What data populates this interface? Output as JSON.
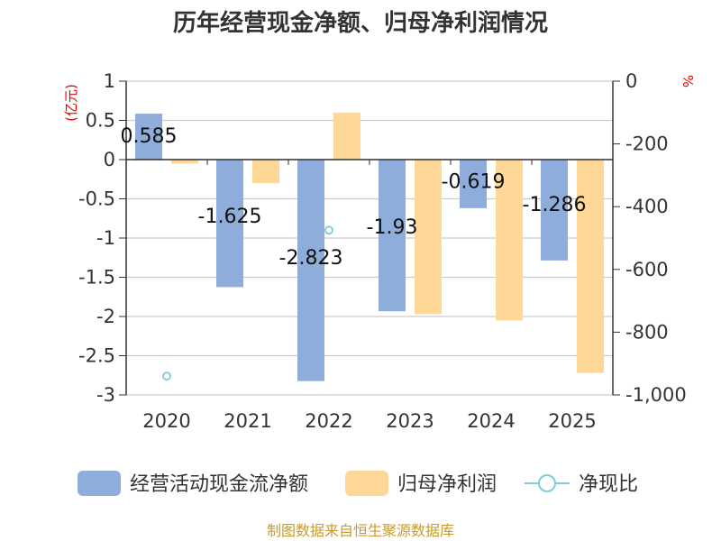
{
  "chart_data": {
    "type": "bar",
    "title": "历年经营现金净额、归母净利润情况",
    "left_unit": "(亿元)",
    "right_unit": "%",
    "categories": [
      "2020",
      "2021",
      "2022",
      "2023",
      "2024",
      "2025"
    ],
    "left_axis": {
      "min": -3,
      "max": 1,
      "ticks": [
        1,
        0.5,
        0,
        -0.5,
        -1,
        -1.5,
        -2,
        -2.5,
        -3
      ],
      "tick_labels": [
        "1",
        "0.5",
        "0",
        "-0.5",
        "-1",
        "-1.5",
        "-2",
        "-2.5",
        "-3"
      ]
    },
    "right_axis": {
      "min": -1000,
      "max": 0,
      "ticks": [
        0,
        -200,
        -400,
        -600,
        -800,
        -1000
      ],
      "tick_labels": [
        "0",
        "-200",
        "-400",
        "-600",
        "-800",
        "-1,000"
      ]
    },
    "grid": true,
    "legend_position": "bottom",
    "series": [
      {
        "name": "经营活动现金流净额",
        "type": "bar",
        "axis": "left",
        "color": "#8eaddb",
        "values": [
          0.585,
          -1.625,
          -2.823,
          -1.933,
          -0.619,
          -1.286
        ],
        "labels": [
          "0.585",
          "-1.625",
          "-2.823",
          "-1.93",
          "-0.619",
          "-1.286"
        ]
      },
      {
        "name": "归母净利润",
        "type": "bar",
        "axis": "left",
        "color": "#ffd796",
        "values": [
          -0.05,
          -0.3,
          0.6,
          -1.97,
          -2.05,
          -2.72
        ]
      },
      {
        "name": "净现比",
        "type": "scatter",
        "axis": "right",
        "color": "#7ecbdc",
        "values": [
          -940,
          null,
          -475,
          null,
          null,
          null
        ]
      }
    ]
  },
  "source": "制图数据来自恒生聚源数据库"
}
